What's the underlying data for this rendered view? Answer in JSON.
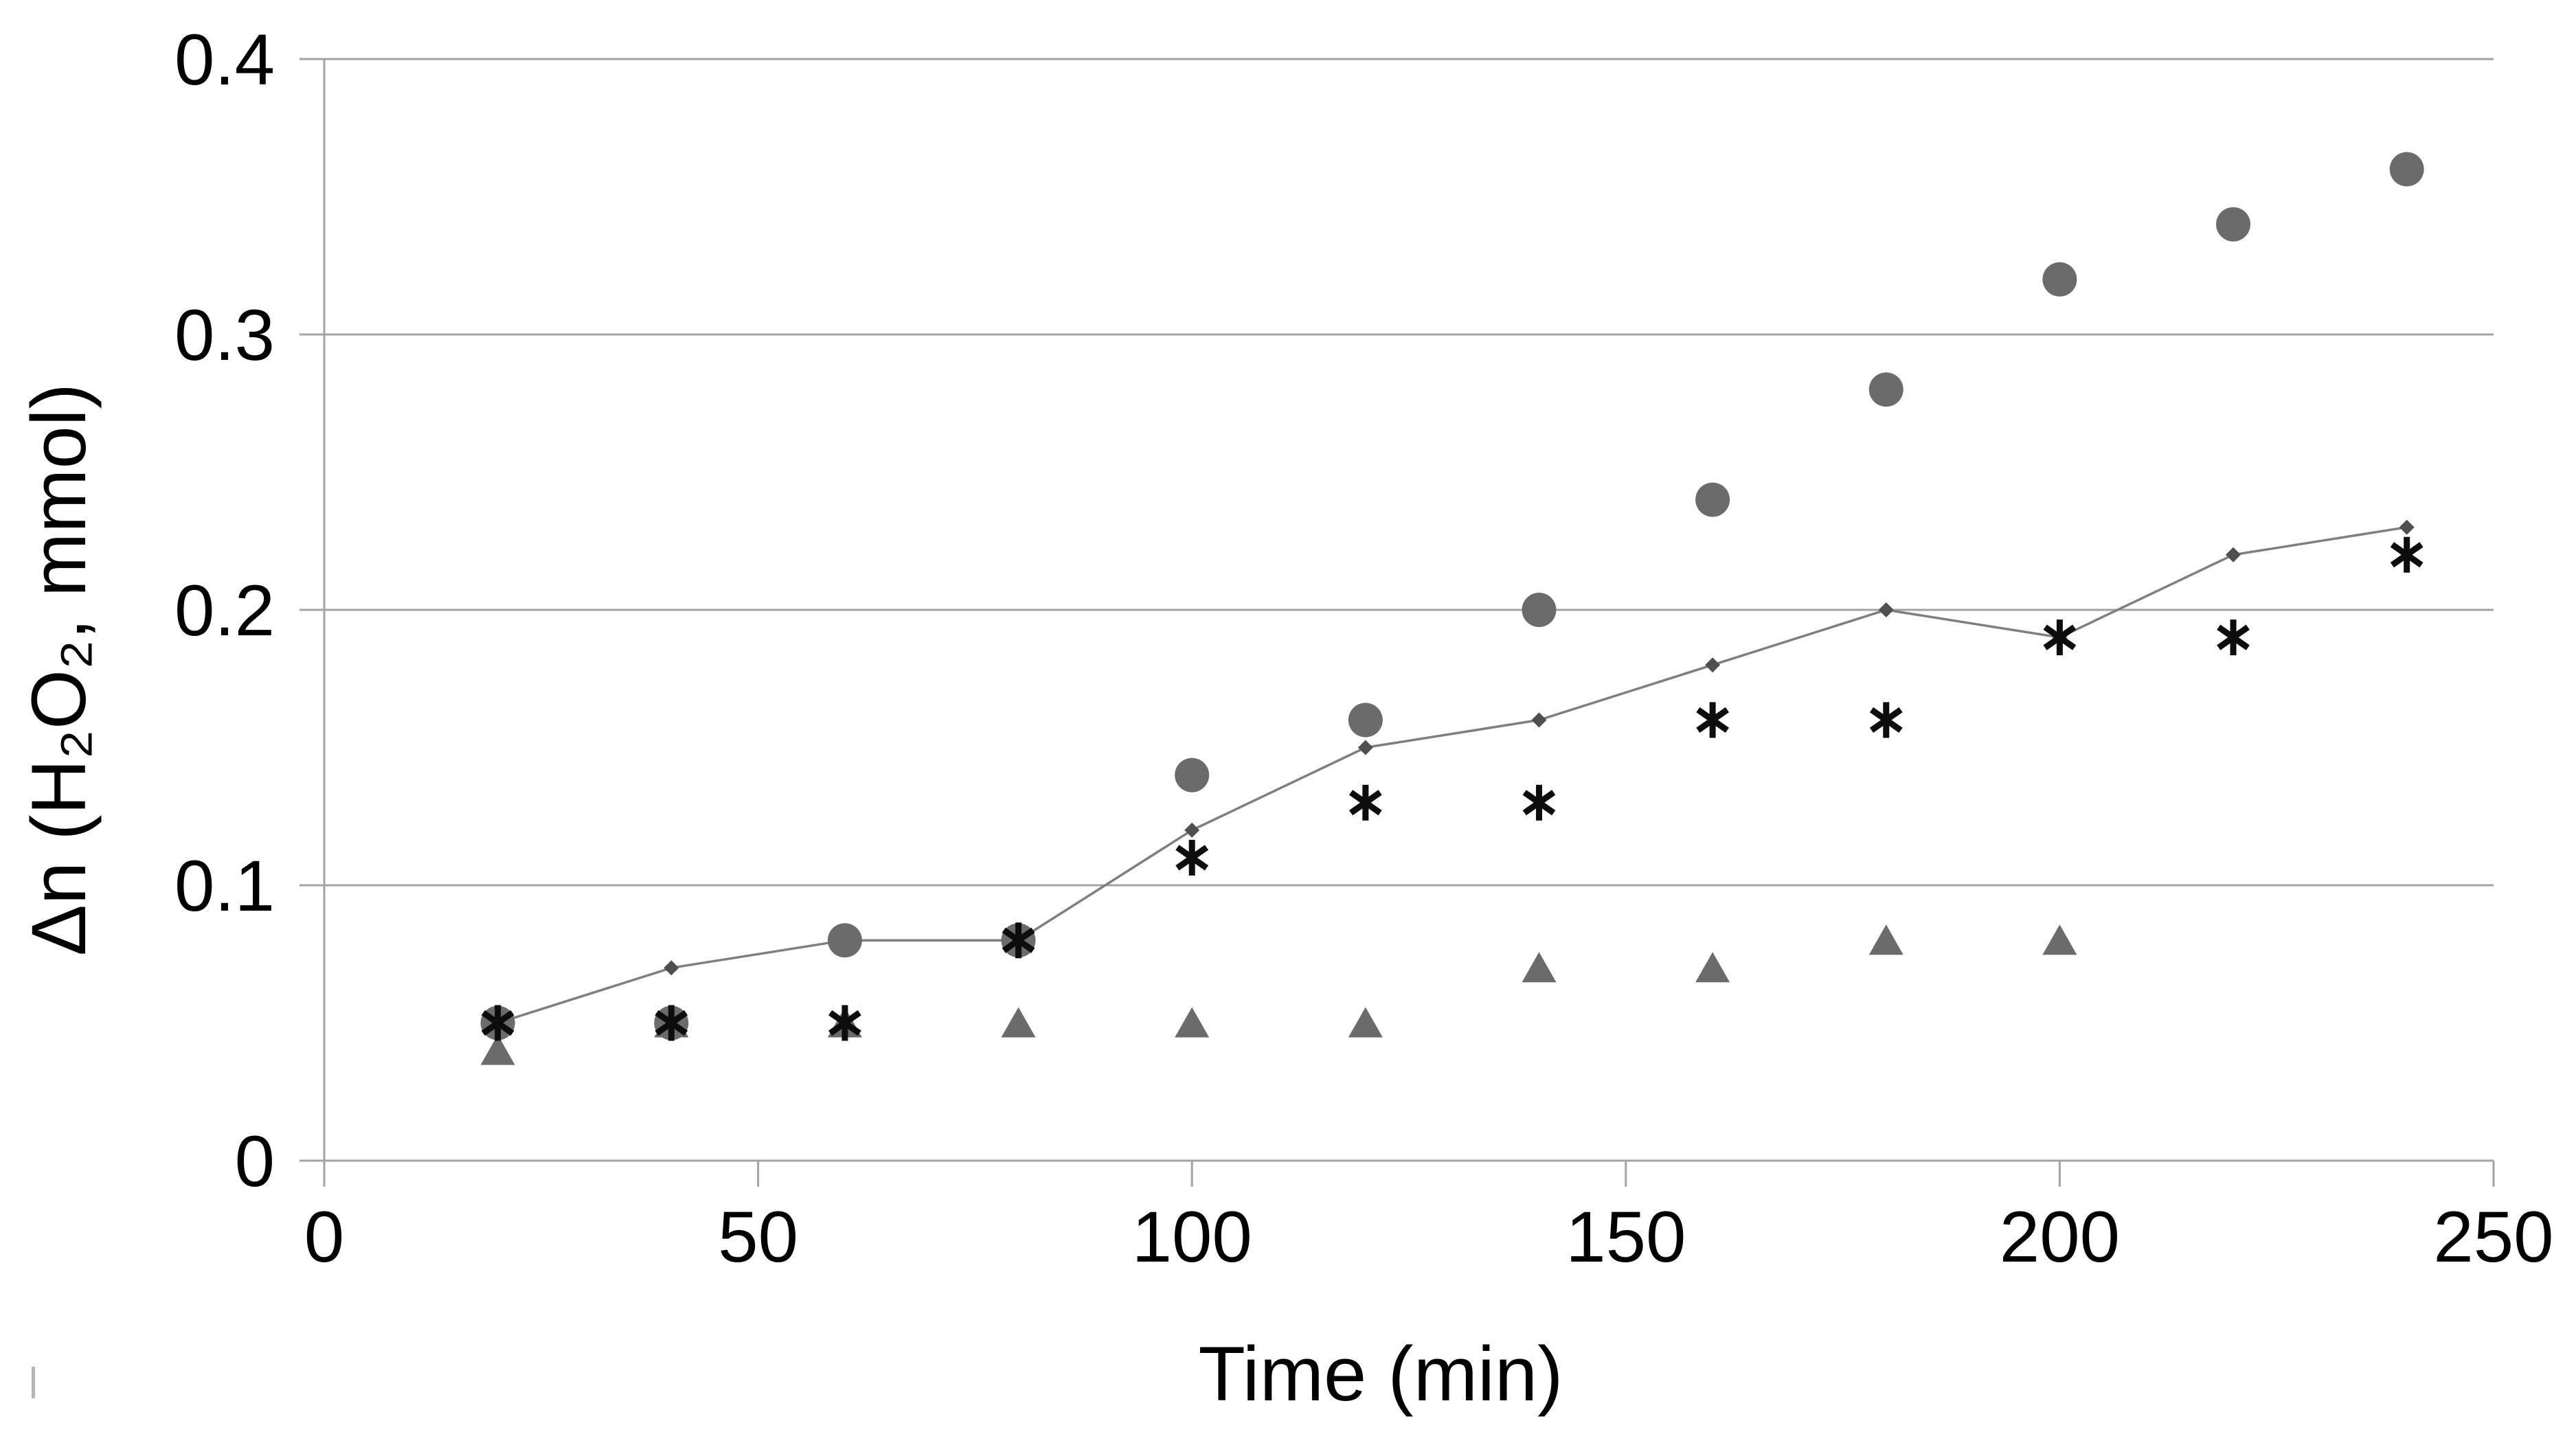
{
  "chart_data": {
    "type": "scatter",
    "title": "",
    "xlabel": "Time (min)",
    "ylabel": "Δn (H₂O₂, mmol)",
    "xlim": [
      0,
      250
    ],
    "ylim": [
      0,
      0.4
    ],
    "x_ticks": [
      0,
      50,
      100,
      150,
      200,
      250
    ],
    "x_tick_labels": [
      "0",
      "50",
      "100",
      "150",
      "200",
      "250"
    ],
    "y_ticks": [
      0,
      0.1,
      0.2,
      0.3,
      0.4
    ],
    "y_tick_labels": [
      "0",
      "0.1",
      "0.2",
      "0.3",
      "0.4"
    ],
    "grid": "horizontal-gridlines-only",
    "legend": "none",
    "axis_color": "#a3a3a3",
    "text_color": "#000000",
    "background_color": "#ffffff",
    "series": [
      {
        "name": "diamond-line-series",
        "marker": "diamond",
        "color": "#4f4f4f",
        "connect": true,
        "line_color": "#7f7f7f",
        "x": [
          20,
          40,
          60,
          80,
          100,
          120,
          140,
          160,
          180,
          200,
          220,
          240
        ],
        "y": [
          0.05,
          0.07,
          0.08,
          0.08,
          0.12,
          0.15,
          0.16,
          0.18,
          0.2,
          0.19,
          0.22,
          0.23
        ]
      },
      {
        "name": "circle-series",
        "marker": "circle",
        "color": "#6b6b6b",
        "connect": false,
        "x": [
          20,
          40,
          60,
          80,
          100,
          120,
          140,
          160,
          180,
          200,
          220,
          240
        ],
        "y": [
          0.05,
          0.05,
          0.08,
          0.08,
          0.14,
          0.16,
          0.2,
          0.24,
          0.28,
          0.32,
          0.34,
          0.36
        ]
      },
      {
        "name": "triangle-series",
        "marker": "triangle",
        "color": "#6b6b6b",
        "connect": false,
        "x": [
          20,
          40,
          60,
          80,
          100,
          120,
          140,
          160,
          180,
          200
        ],
        "y": [
          0.04,
          0.05,
          0.05,
          0.05,
          0.05,
          0.05,
          0.07,
          0.07,
          0.08,
          0.08
        ]
      },
      {
        "name": "asterisk-series",
        "marker": "asterisk",
        "color": "#0d0d0d",
        "connect": false,
        "x": [
          20,
          40,
          60,
          80,
          100,
          120,
          140,
          160,
          180,
          200,
          220,
          240
        ],
        "y": [
          0.05,
          0.05,
          0.05,
          0.08,
          0.11,
          0.13,
          0.13,
          0.16,
          0.16,
          0.19,
          0.19,
          0.22
        ]
      }
    ]
  }
}
